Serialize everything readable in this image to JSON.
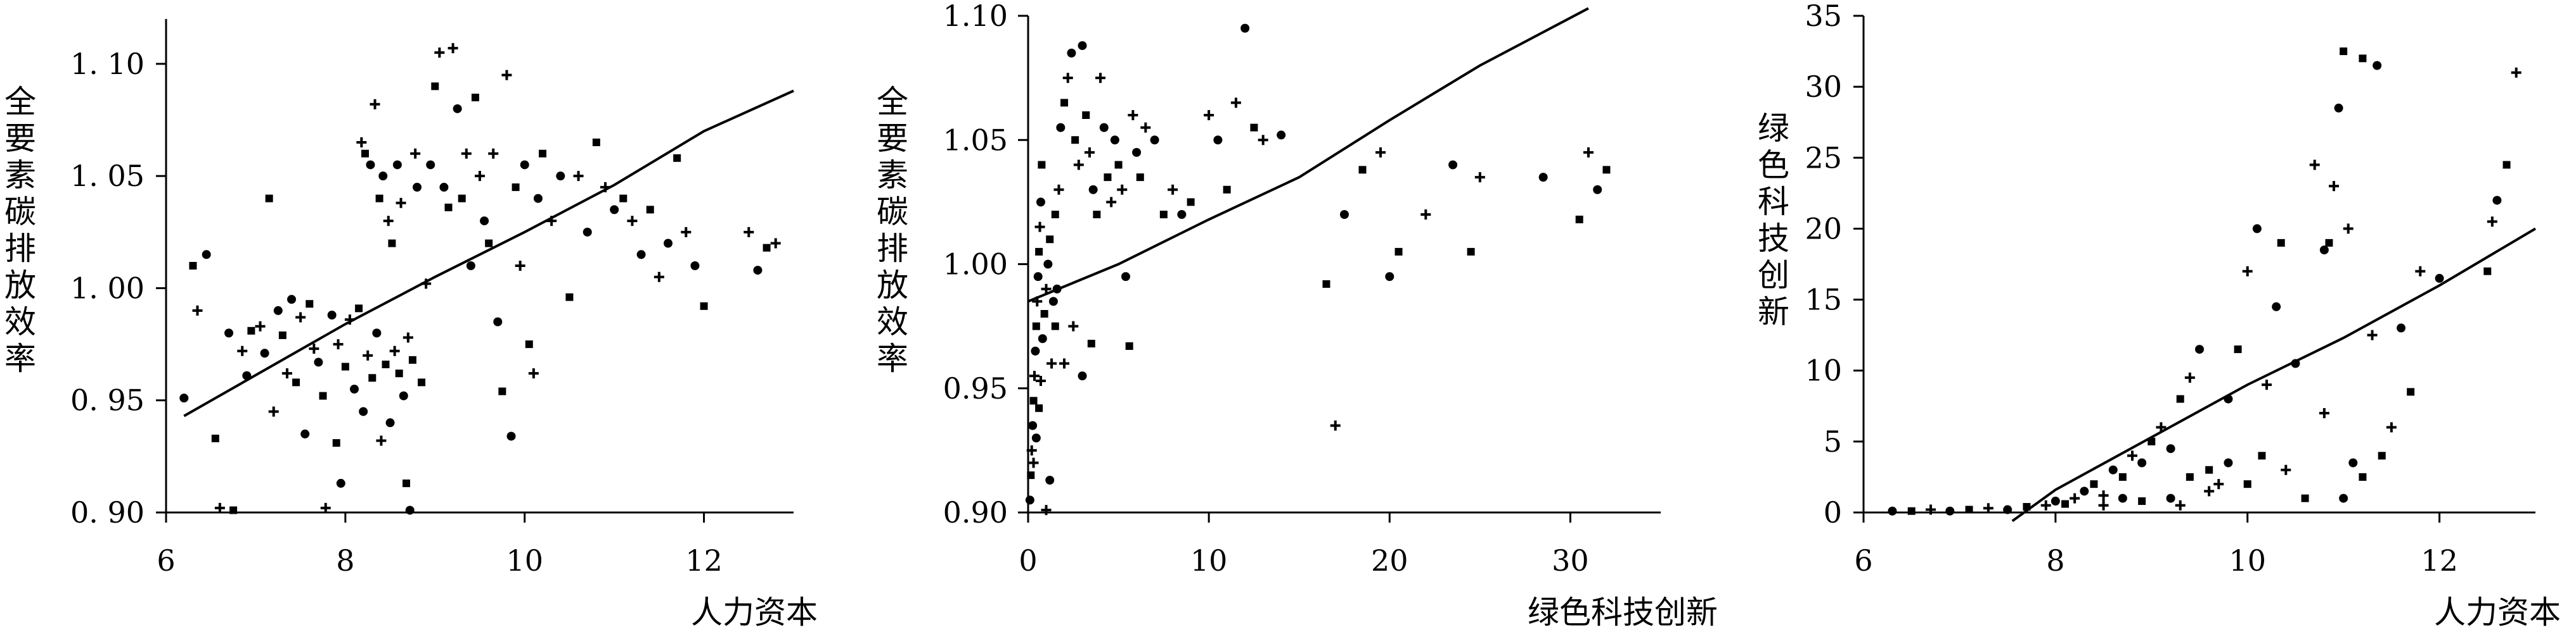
{
  "chart_data": [
    {
      "type": "scatter",
      "xlabel": "人力资本",
      "ylabel": "全要素碳排放效率",
      "xlim": [
        6,
        13
      ],
      "ylim": [
        0.9,
        1.12
      ],
      "xticks": [
        6,
        8,
        10,
        12
      ],
      "yticks": [
        0.9,
        0.95,
        1.0,
        1.05,
        1.1
      ],
      "xtick_labels": [
        "6",
        "8",
        "10",
        "12"
      ],
      "ytick_labels": [
        "0. 90",
        "0. 95",
        "1. 00",
        "1. 05",
        "1. 10"
      ],
      "grid": false,
      "points": [
        [
          6.2,
          0.951
        ],
        [
          6.3,
          1.01
        ],
        [
          6.35,
          0.99
        ],
        [
          6.45,
          1.015
        ],
        [
          6.55,
          0.933
        ],
        [
          6.6,
          0.902
        ],
        [
          6.7,
          0.98
        ],
        [
          6.75,
          0.901
        ],
        [
          6.85,
          0.972
        ],
        [
          6.9,
          0.961
        ],
        [
          6.95,
          0.981
        ],
        [
          7.05,
          0.983
        ],
        [
          7.1,
          0.971
        ],
        [
          7.15,
          1.04
        ],
        [
          7.2,
          0.945
        ],
        [
          7.25,
          0.99
        ],
        [
          7.3,
          0.979
        ],
        [
          7.35,
          0.962
        ],
        [
          7.4,
          0.995
        ],
        [
          7.45,
          0.958
        ],
        [
          7.5,
          0.987
        ],
        [
          7.55,
          0.935
        ],
        [
          7.6,
          0.993
        ],
        [
          7.65,
          0.973
        ],
        [
          7.7,
          0.967
        ],
        [
          7.75,
          0.952
        ],
        [
          7.78,
          0.902
        ],
        [
          7.85,
          0.988
        ],
        [
          7.9,
          0.931
        ],
        [
          7.92,
          0.975
        ],
        [
          7.95,
          0.913
        ],
        [
          8.0,
          0.965
        ],
        [
          8.05,
          0.986
        ],
        [
          8.1,
          0.955
        ],
        [
          8.15,
          0.991
        ],
        [
          8.18,
          1.065
        ],
        [
          8.2,
          0.945
        ],
        [
          8.22,
          1.06
        ],
        [
          8.25,
          0.97
        ],
        [
          8.28,
          1.055
        ],
        [
          8.3,
          0.96
        ],
        [
          8.33,
          1.082
        ],
        [
          8.35,
          0.98
        ],
        [
          8.38,
          1.04
        ],
        [
          8.4,
          0.932
        ],
        [
          8.42,
          1.05
        ],
        [
          8.45,
          0.966
        ],
        [
          8.48,
          1.03
        ],
        [
          8.5,
          0.94
        ],
        [
          8.52,
          1.02
        ],
        [
          8.55,
          0.972
        ],
        [
          8.58,
          1.055
        ],
        [
          8.6,
          0.962
        ],
        [
          8.62,
          1.038
        ],
        [
          8.65,
          0.952
        ],
        [
          8.68,
          0.913
        ],
        [
          8.7,
          0.978
        ],
        [
          8.72,
          0.901
        ],
        [
          8.75,
          0.968
        ],
        [
          8.78,
          1.06
        ],
        [
          8.8,
          1.045
        ],
        [
          8.85,
          0.958
        ],
        [
          8.9,
          1.002
        ],
        [
          8.95,
          1.055
        ],
        [
          9.0,
          1.09
        ],
        [
          9.05,
          1.105
        ],
        [
          9.1,
          1.045
        ],
        [
          9.15,
          1.036
        ],
        [
          9.2,
          1.107
        ],
        [
          9.25,
          1.08
        ],
        [
          9.3,
          1.04
        ],
        [
          9.35,
          1.06
        ],
        [
          9.4,
          1.01
        ],
        [
          9.45,
          1.085
        ],
        [
          9.5,
          1.05
        ],
        [
          9.55,
          1.03
        ],
        [
          9.6,
          1.02
        ],
        [
          9.65,
          1.06
        ],
        [
          9.7,
          0.985
        ],
        [
          9.75,
          0.954
        ],
        [
          9.8,
          1.095
        ],
        [
          9.85,
          0.934
        ],
        [
          9.9,
          1.045
        ],
        [
          9.95,
          1.01
        ],
        [
          10.0,
          1.055
        ],
        [
          10.05,
          0.975
        ],
        [
          10.1,
          0.962
        ],
        [
          10.15,
          1.04
        ],
        [
          10.2,
          1.06
        ],
        [
          10.3,
          1.03
        ],
        [
          10.4,
          1.05
        ],
        [
          10.5,
          0.996
        ],
        [
          10.6,
          1.05
        ],
        [
          10.7,
          1.025
        ],
        [
          10.8,
          1.065
        ],
        [
          10.9,
          1.045
        ],
        [
          11.0,
          1.035
        ],
        [
          11.1,
          1.04
        ],
        [
          11.2,
          1.03
        ],
        [
          11.3,
          1.015
        ],
        [
          11.4,
          1.035
        ],
        [
          11.5,
          1.005
        ],
        [
          11.6,
          1.02
        ],
        [
          11.7,
          1.058
        ],
        [
          11.8,
          1.025
        ],
        [
          11.9,
          1.01
        ],
        [
          12.0,
          0.992
        ],
        [
          12.5,
          1.025
        ],
        [
          12.6,
          1.008
        ],
        [
          12.7,
          1.018
        ],
        [
          12.8,
          1.02
        ]
      ],
      "trend_line": [
        [
          6.2,
          0.943
        ],
        [
          8.0,
          0.984
        ],
        [
          9.0,
          1.005
        ],
        [
          10.0,
          1.025
        ],
        [
          11.0,
          1.046
        ],
        [
          12.0,
          1.07
        ],
        [
          13.0,
          1.088
        ]
      ]
    },
    {
      "type": "scatter",
      "xlabel": "绿色科技创新",
      "ylabel": "全要素碳排放效率",
      "xlim": [
        0,
        35
      ],
      "ylim": [
        0.9,
        1.1
      ],
      "xticks": [
        0,
        10,
        20,
        30
      ],
      "yticks": [
        0.9,
        0.95,
        1.0,
        1.05,
        1.1
      ],
      "xtick_labels": [
        "0",
        "10",
        "20",
        "30"
      ],
      "ytick_labels": [
        "0.90",
        "0.95",
        "1.00",
        "1.05",
        "1.10"
      ],
      "grid": false,
      "points": [
        [
          0.1,
          0.905
        ],
        [
          0.15,
          0.915
        ],
        [
          0.2,
          0.925
        ],
        [
          0.25,
          0.935
        ],
        [
          0.3,
          0.945
        ],
        [
          0.35,
          0.955
        ],
        [
          0.4,
          0.965
        ],
        [
          0.45,
          0.975
        ],
        [
          0.5,
          0.985
        ],
        [
          0.55,
          0.995
        ],
        [
          0.6,
          1.005
        ],
        [
          0.65,
          1.015
        ],
        [
          0.7,
          1.025
        ],
        [
          0.75,
          1.04
        ],
        [
          0.3,
          0.92
        ],
        [
          0.45,
          0.93
        ],
        [
          0.6,
          0.942
        ],
        [
          0.7,
          0.953
        ],
        [
          0.8,
          0.97
        ],
        [
          0.9,
          0.98
        ],
        [
          1.0,
          0.99
        ],
        [
          1.1,
          1.0
        ],
        [
          1.2,
          1.01
        ],
        [
          1.3,
          0.96
        ],
        [
          1.4,
          0.985
        ],
        [
          1.5,
          1.02
        ],
        [
          1.0,
          0.901
        ],
        [
          1.2,
          0.913
        ],
        [
          1.5,
          0.975
        ],
        [
          1.7,
          1.03
        ],
        [
          1.8,
          1.055
        ],
        [
          2.0,
          1.065
        ],
        [
          2.2,
          1.075
        ],
        [
          2.4,
          1.085
        ],
        [
          2.6,
          1.05
        ],
        [
          2.8,
          1.04
        ],
        [
          3.0,
          1.088
        ],
        [
          3.2,
          1.06
        ],
        [
          3.4,
          1.045
        ],
        [
          3.6,
          1.03
        ],
        [
          3.8,
          1.02
        ],
        [
          4.0,
          1.075
        ],
        [
          4.2,
          1.055
        ],
        [
          4.4,
          1.035
        ],
        [
          4.6,
          1.025
        ],
        [
          4.8,
          1.05
        ],
        [
          5.0,
          1.04
        ],
        [
          5.2,
          1.03
        ],
        [
          5.4,
          0.995
        ],
        [
          5.6,
          0.967
        ],
        [
          5.8,
          1.06
        ],
        [
          6.0,
          1.045
        ],
        [
          6.2,
          1.035
        ],
        [
          6.5,
          1.055
        ],
        [
          7.0,
          1.05
        ],
        [
          7.5,
          1.02
        ],
        [
          8.0,
          1.03
        ],
        [
          8.5,
          1.02
        ],
        [
          9.0,
          1.025
        ],
        [
          10.0,
          1.06
        ],
        [
          10.5,
          1.05
        ],
        [
          11.0,
          1.03
        ],
        [
          11.5,
          1.065
        ],
        [
          12.0,
          1.095
        ],
        [
          12.5,
          1.055
        ],
        [
          13.0,
          1.05
        ],
        [
          14.0,
          1.052
        ],
        [
          16.5,
          0.992
        ],
        [
          17.0,
          0.935
        ],
        [
          17.5,
          1.02
        ],
        [
          18.5,
          1.038
        ],
        [
          19.5,
          1.045
        ],
        [
          20.0,
          0.995
        ],
        [
          20.5,
          1.005
        ],
        [
          22.0,
          1.02
        ],
        [
          23.5,
          1.04
        ],
        [
          24.5,
          1.005
        ],
        [
          25.0,
          1.035
        ],
        [
          28.5,
          1.035
        ],
        [
          30.5,
          1.018
        ],
        [
          31.0,
          1.045
        ],
        [
          31.5,
          1.03
        ],
        [
          32.0,
          1.038
        ],
        [
          2.5,
          0.975
        ],
        [
          3.0,
          0.955
        ],
        [
          3.5,
          0.968
        ],
        [
          2.0,
          0.96
        ],
        [
          1.6,
          0.99
        ]
      ],
      "trend_line": [
        [
          0,
          0.985
        ],
        [
          5,
          1.0
        ],
        [
          10,
          1.018
        ],
        [
          15,
          1.035
        ],
        [
          20,
          1.058
        ],
        [
          25,
          1.08
        ],
        [
          31,
          1.103
        ]
      ]
    },
    {
      "type": "scatter",
      "xlabel": "人力资本",
      "ylabel": "绿色科技创新",
      "xlim": [
        6,
        13
      ],
      "ylim": [
        0,
        35
      ],
      "xticks": [
        6,
        8,
        10,
        12
      ],
      "yticks": [
        0,
        5,
        10,
        15,
        20,
        25,
        30,
        35
      ],
      "xtick_labels": [
        "6",
        "8",
        "10",
        "12"
      ],
      "ytick_labels": [
        "0",
        "5",
        "10",
        "15",
        "20",
        "25",
        "30",
        "35"
      ],
      "grid": false,
      "points": [
        [
          6.3,
          0.1
        ],
        [
          6.5,
          0.1
        ],
        [
          6.7,
          0.2
        ],
        [
          6.9,
          0.1
        ],
        [
          7.1,
          0.2
        ],
        [
          7.3,
          0.3
        ],
        [
          7.5,
          0.2
        ],
        [
          7.7,
          0.4
        ],
        [
          7.9,
          0.5
        ],
        [
          8.0,
          0.8
        ],
        [
          8.1,
          0.6
        ],
        [
          8.2,
          1.0
        ],
        [
          8.3,
          1.5
        ],
        [
          8.4,
          2.0
        ],
        [
          8.5,
          1.2
        ],
        [
          8.6,
          3.0
        ],
        [
          8.7,
          2.5
        ],
        [
          8.8,
          4.0
        ],
        [
          8.9,
          3.5
        ],
        [
          9.0,
          5.0
        ],
        [
          9.1,
          6.0
        ],
        [
          9.2,
          4.5
        ],
        [
          9.3,
          8.0
        ],
        [
          9.4,
          9.5
        ],
        [
          9.5,
          11.5
        ],
        [
          9.6,
          3.0
        ],
        [
          9.7,
          2.0
        ],
        [
          9.8,
          8.0
        ],
        [
          9.9,
          11.5
        ],
        [
          10.0,
          17.0
        ],
        [
          10.1,
          20.0
        ],
        [
          10.15,
          4.0
        ],
        [
          10.2,
          9.0
        ],
        [
          10.3,
          14.5
        ],
        [
          10.35,
          19.0
        ],
        [
          10.4,
          3.0
        ],
        [
          10.5,
          10.5
        ],
        [
          10.6,
          1.0
        ],
        [
          10.7,
          24.5
        ],
        [
          10.8,
          18.5
        ],
        [
          10.85,
          19.0
        ],
        [
          10.9,
          23.0
        ],
        [
          10.95,
          28.5
        ],
        [
          11.0,
          32.5
        ],
        [
          11.05,
          20.0
        ],
        [
          11.1,
          3.5
        ],
        [
          11.2,
          32.0
        ],
        [
          11.3,
          12.5
        ],
        [
          11.35,
          31.5
        ],
        [
          11.4,
          4.0
        ],
        [
          11.5,
          6.0
        ],
        [
          11.6,
          13.0
        ],
        [
          11.7,
          8.5
        ],
        [
          11.8,
          17.0
        ],
        [
          12.0,
          16.5
        ],
        [
          12.5,
          17.0
        ],
        [
          12.55,
          20.5
        ],
        [
          12.6,
          22.0
        ],
        [
          12.7,
          24.5
        ],
        [
          12.8,
          31.0
        ],
        [
          9.2,
          1.0
        ],
        [
          9.4,
          2.5
        ],
        [
          9.6,
          1.5
        ],
        [
          9.8,
          3.5
        ],
        [
          10.0,
          2.0
        ],
        [
          8.5,
          0.5
        ],
        [
          8.7,
          1.0
        ],
        [
          8.9,
          0.8
        ],
        [
          9.3,
          0.5
        ],
        [
          11.0,
          1.0
        ],
        [
          11.2,
          2.5
        ],
        [
          10.8,
          7.0
        ]
      ],
      "trend_line": [
        [
          7.55,
          -0.6
        ],
        [
          8,
          1.6
        ],
        [
          9,
          5.3
        ],
        [
          10,
          9.0
        ],
        [
          11,
          12.3
        ],
        [
          12,
          16.0
        ],
        [
          13,
          20.0
        ]
      ]
    }
  ]
}
